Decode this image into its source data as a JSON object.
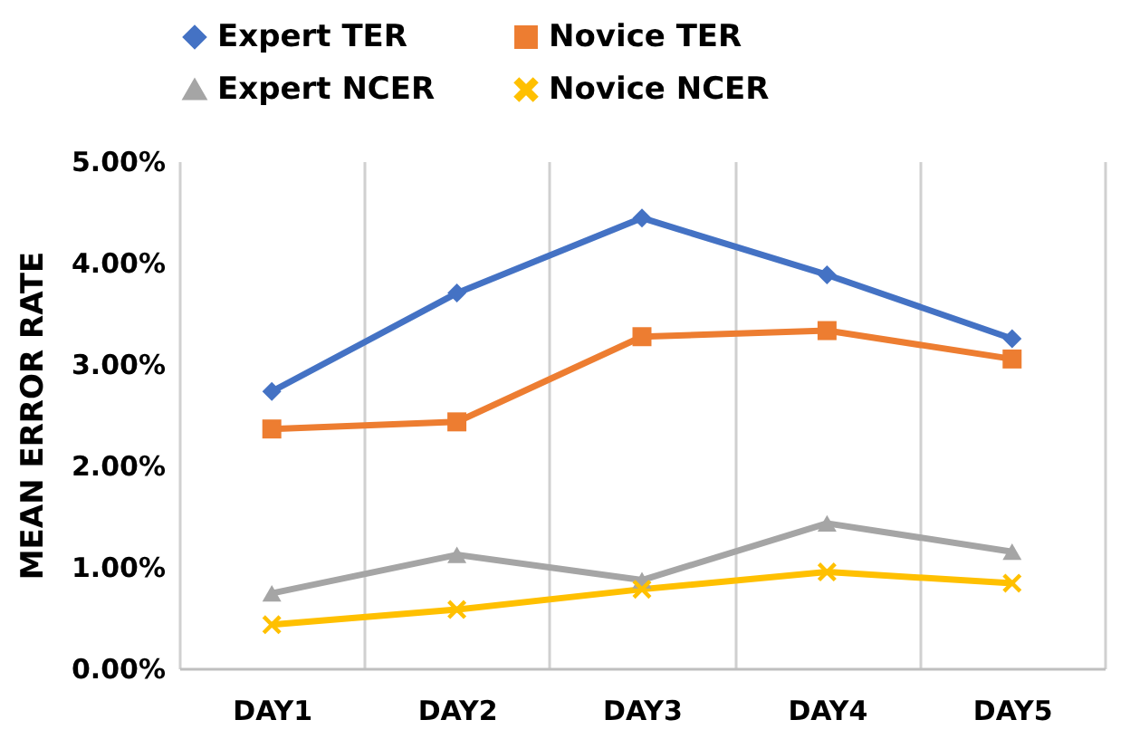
{
  "chart_data": {
    "type": "line",
    "ylabel": "MEAN ERROR RATE",
    "categories": [
      "DAY1",
      "DAY2",
      "DAY3",
      "DAY4",
      "DAY5"
    ],
    "series": [
      {
        "name": "Expert TER",
        "color": "#4472c4",
        "marker": "diamond",
        "values": [
          2.73,
          3.7,
          4.44,
          3.88,
          3.25
        ]
      },
      {
        "name": "Novice TER",
        "color": "#ed7d31",
        "marker": "square",
        "values": [
          2.36,
          2.43,
          3.27,
          3.33,
          3.05
        ]
      },
      {
        "name": "Expert NCER",
        "color": "#a5a5a5",
        "marker": "triangle",
        "values": [
          0.74,
          1.12,
          0.87,
          1.43,
          1.15
        ]
      },
      {
        "name": "Novice NCER",
        "color": "#ffc000",
        "marker": "cross",
        "values": [
          0.43,
          0.58,
          0.78,
          0.95,
          0.84
        ]
      }
    ],
    "ylim": [
      0,
      5
    ],
    "yticks": [
      {
        "value": 0,
        "label": "0.00%"
      },
      {
        "value": 1,
        "label": "1.00%"
      },
      {
        "value": 2,
        "label": "2.00%"
      },
      {
        "value": 3,
        "label": "3.00%"
      },
      {
        "value": 4,
        "label": "4.00%"
      },
      {
        "value": 5,
        "label": "5.00%"
      }
    ],
    "grid": "x",
    "legend": "top",
    "line_style": "solid"
  }
}
